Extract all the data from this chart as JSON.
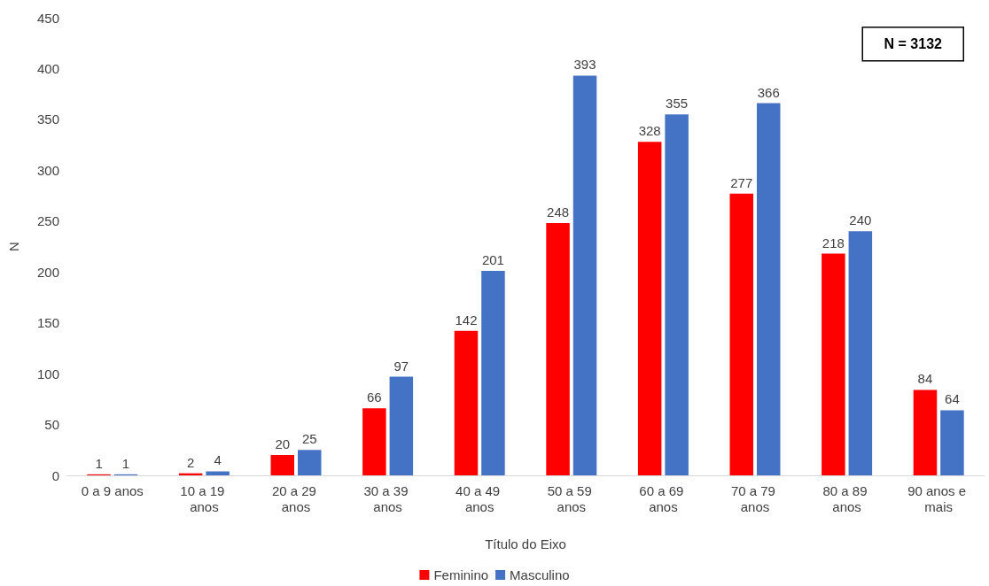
{
  "chart_data": {
    "type": "bar",
    "xlabel": "Título do Eixo",
    "ylabel": "N",
    "categories": [
      "0 a 9 anos",
      "10 a 19 anos",
      "20 a 29 anos",
      "30 a 39 anos",
      "40 a 49 anos",
      "50 a 59 anos",
      "60 a 69 anos",
      "70 a 79 anos",
      "80 a 89 anos",
      "90 anos e mais"
    ],
    "series": [
      {
        "name": "Feminino",
        "color": "#ff0000",
        "values": [
          1,
          2,
          20,
          66,
          142,
          248,
          328,
          277,
          218,
          84
        ]
      },
      {
        "name": "Masculino",
        "color": "#4472c4",
        "values": [
          1,
          4,
          25,
          97,
          201,
          393,
          355,
          366,
          240,
          64
        ]
      }
    ],
    "ylim": [
      0,
      450
    ],
    "yticks": [
      0,
      50,
      100,
      150,
      200,
      250,
      300,
      350,
      400,
      450
    ],
    "grid": false,
    "legend": "bottom",
    "data_labels": true,
    "annotations": [
      "N = 3132"
    ]
  }
}
